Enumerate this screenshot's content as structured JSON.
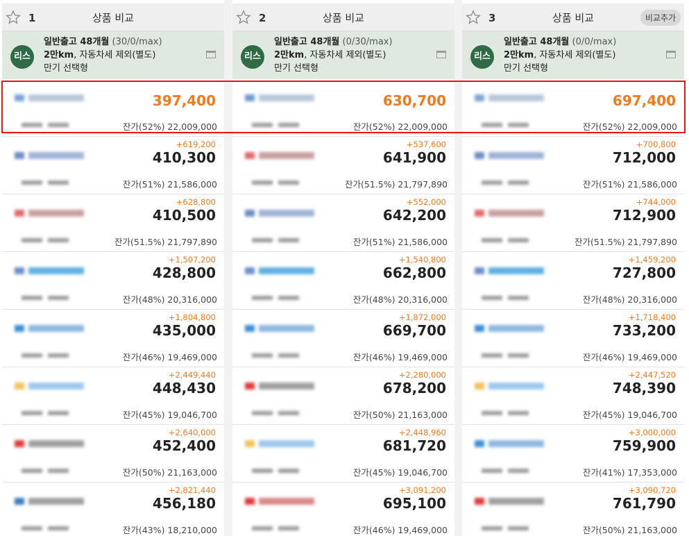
{
  "columns": [
    {
      "num": "1",
      "title": "상품 비교",
      "add_label": "",
      "badge": "리스",
      "cond_line1_bold": "일반출고 48개월",
      "cond_line1_light": "(30/0/max)",
      "cond_line2_bold": "2만km",
      "cond_line2_rest": ", 자동차세 제외(별도)",
      "cond_line3": "만기 선택형",
      "rows": [
        {
          "diff": "",
          "price": "397,400",
          "resid": "잔가(52%) 22,009,000",
          "logo": [
            "#7aa6d8",
            "#b7c8dc"
          ]
        },
        {
          "diff": "+619,200",
          "price": "410,300",
          "resid": "잔가(51%) 21,586,000",
          "logo": [
            "#6b8fc4",
            "#9fb4d6"
          ]
        },
        {
          "diff": "+628,800",
          "price": "410,500",
          "resid": "잔가(51.5%) 21,797,890",
          "logo": [
            "#e26a6a",
            "#c9a0a0"
          ]
        },
        {
          "diff": "+1,507,200",
          "price": "428,800",
          "resid": "잔가(48%) 20,316,000",
          "logo": [
            "#6c8ec8",
            "#5fb0e0"
          ]
        },
        {
          "diff": "+1,804,800",
          "price": "435,000",
          "resid": "잔가(46%) 19,469,000",
          "logo": [
            "#3d8fd6",
            "#8fb8e0"
          ]
        },
        {
          "diff": "+2,449,440",
          "price": "448,430",
          "resid": "잔가(45%) 19,046,700",
          "logo": [
            "#f3c15c",
            "#9ec8ec"
          ]
        },
        {
          "diff": "+2,640,000",
          "price": "452,400",
          "resid": "잔가(50%) 21,163,000",
          "logo": [
            "#e03b3b",
            "#a0a0a0"
          ]
        },
        {
          "diff": "+2,821,440",
          "price": "456,180",
          "resid": "잔가(43%) 18,210,000",
          "logo": [
            "#3b7fb8",
            "#a0a0a0"
          ]
        }
      ]
    },
    {
      "num": "2",
      "title": "상품 비교",
      "add_label": "",
      "badge": "리스",
      "cond_line1_bold": "일반출고 48개월",
      "cond_line1_light": "(0/30/max)",
      "cond_line2_bold": "2만km",
      "cond_line2_rest": ", 자동차세 제외(별도)",
      "cond_line3": "만기 선택형",
      "rows": [
        {
          "diff": "",
          "price": "630,700",
          "resid": "잔가(52%) 22,009,000",
          "logo": [
            "#6f9bd2",
            "#b7c8dc"
          ]
        },
        {
          "diff": "+537,600",
          "price": "641,900",
          "resid": "잔가(51.5%) 21,797,890",
          "logo": [
            "#e26a6a",
            "#c9a0a0"
          ]
        },
        {
          "diff": "+552,000",
          "price": "642,200",
          "resid": "잔가(51%) 21,586,000",
          "logo": [
            "#6b8fc4",
            "#9fb4d6"
          ]
        },
        {
          "diff": "+1,540,800",
          "price": "662,800",
          "resid": "잔가(48%) 20,316,000",
          "logo": [
            "#6c8ec8",
            "#5fb0e0"
          ]
        },
        {
          "diff": "+1,872,000",
          "price": "669,700",
          "resid": "잔가(46%) 19,469,000",
          "logo": [
            "#3d8fd6",
            "#8fb8e0"
          ]
        },
        {
          "diff": "+2,280,000",
          "price": "678,200",
          "resid": "잔가(50%) 21,163,000",
          "logo": [
            "#e03b3b",
            "#a0a0a0"
          ]
        },
        {
          "diff": "+2,448,960",
          "price": "681,720",
          "resid": "잔가(45%) 19,046,700",
          "logo": [
            "#f3c15c",
            "#9ec8ec"
          ]
        },
        {
          "diff": "+3,091,200",
          "price": "695,100",
          "resid": "잔가(46%) 19,469,000",
          "logo": [
            "#e23a3a",
            "#d98a8a"
          ]
        }
      ]
    },
    {
      "num": "3",
      "title": "상품 비교",
      "add_label": "비교추가",
      "badge": "리스",
      "cond_line1_bold": "일반출고 48개월",
      "cond_line1_light": "(0/0/max)",
      "cond_line2_bold": "2만km",
      "cond_line2_rest": ", 자동차세 제외(별도)",
      "cond_line3": "만기 선택형",
      "rows": [
        {
          "diff": "",
          "price": "697,400",
          "resid": "잔가(52%) 22,009,000",
          "logo": [
            "#7aa6d8",
            "#b7c8dc"
          ]
        },
        {
          "diff": "+700,800",
          "price": "712,000",
          "resid": "잔가(51%) 21,586,000",
          "logo": [
            "#6b8fc4",
            "#9fb4d6"
          ]
        },
        {
          "diff": "+744,000",
          "price": "712,900",
          "resid": "잔가(51.5%) 21,797,890",
          "logo": [
            "#e26a6a",
            "#c9a0a0"
          ]
        },
        {
          "diff": "+1,459,200",
          "price": "727,800",
          "resid": "잔가(48%) 20,316,000",
          "logo": [
            "#6c8ec8",
            "#5fb0e0"
          ]
        },
        {
          "diff": "+1,718,400",
          "price": "733,200",
          "resid": "잔가(46%) 19,469,000",
          "logo": [
            "#3d8fd6",
            "#8fb8e0"
          ]
        },
        {
          "diff": "+2,447,520",
          "price": "748,390",
          "resid": "잔가(45%) 19,046,700",
          "logo": [
            "#f3c15c",
            "#9ec8ec"
          ]
        },
        {
          "diff": "+3,000,000",
          "price": "759,900",
          "resid": "잔가(41%) 17,353,000",
          "logo": [
            "#3d8fd6",
            "#8fb8e0"
          ]
        },
        {
          "diff": "+3,090,720",
          "price": "761,790",
          "resid": "잔가(50%) 21,163,000",
          "logo": [
            "#e03b3b",
            "#a0a0a0"
          ]
        }
      ]
    }
  ]
}
